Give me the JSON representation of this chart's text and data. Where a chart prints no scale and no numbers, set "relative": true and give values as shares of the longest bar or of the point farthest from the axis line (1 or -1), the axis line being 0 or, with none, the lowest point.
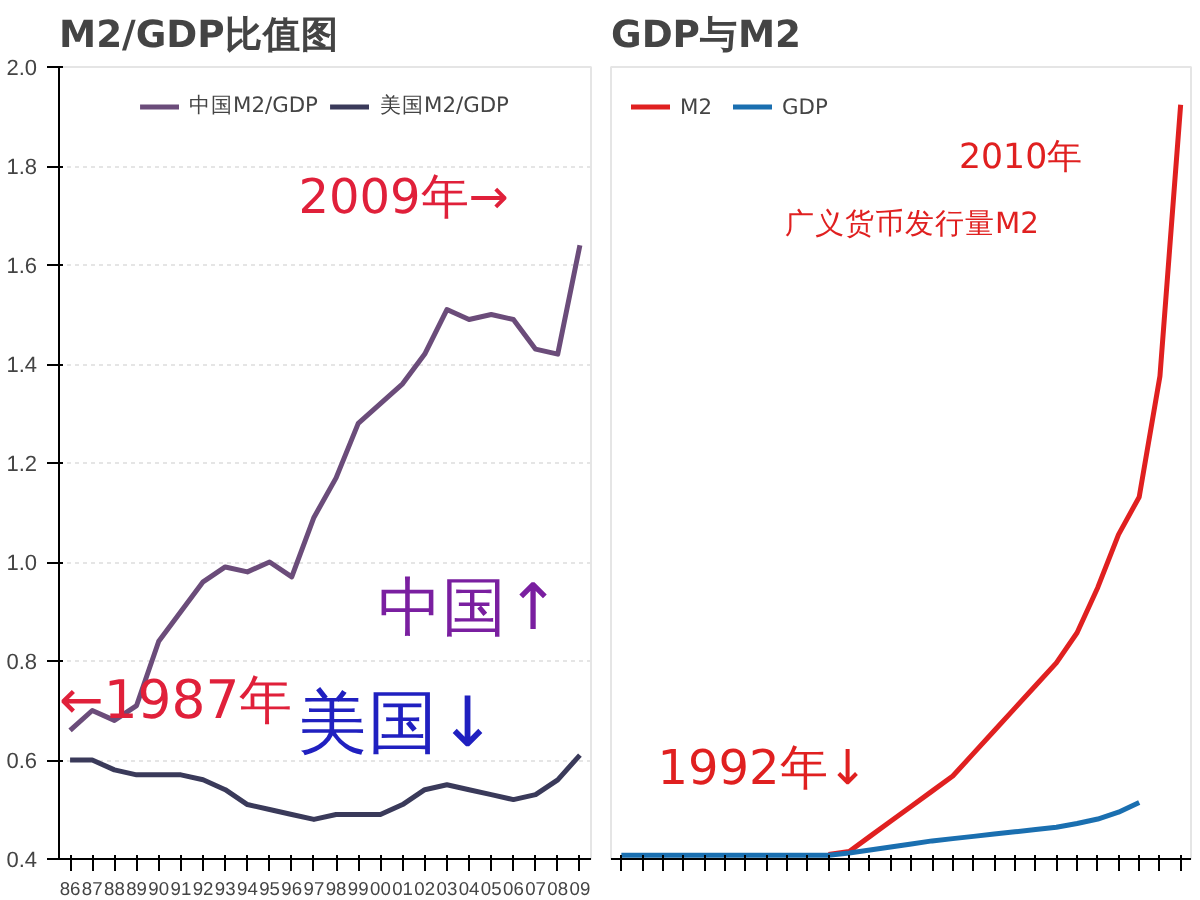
{
  "chart_data": [
    {
      "type": "line",
      "title": "M2/GDP比值图",
      "categories": [
        "86",
        "87",
        "88",
        "89",
        "90",
        "91",
        "92",
        "93",
        "94",
        "95",
        "96",
        "97",
        "98",
        "99",
        "00",
        "01",
        "02",
        "03",
        "04",
        "05",
        "06",
        "07",
        "08",
        "09"
      ],
      "series": [
        {
          "name": "中国M2/GDP",
          "color": "#6b4c7a",
          "values": [
            0.66,
            0.7,
            0.68,
            0.71,
            0.84,
            0.9,
            0.96,
            0.99,
            0.98,
            1.0,
            0.97,
            1.09,
            1.17,
            1.28,
            1.32,
            1.36,
            1.42,
            1.51,
            1.49,
            1.5,
            1.49,
            1.43,
            1.42,
            1.64
          ]
        },
        {
          "name": "美国M2/GDP",
          "color": "#3a3a5a",
          "values": [
            0.6,
            0.6,
            0.58,
            0.57,
            0.57,
            0.57,
            0.56,
            0.54,
            0.51,
            0.5,
            0.49,
            0.48,
            0.49,
            0.49,
            0.49,
            0.51,
            0.54,
            0.55,
            0.54,
            0.53,
            0.52,
            0.53,
            0.56,
            0.61
          ]
        }
      ],
      "ylim": [
        0.4,
        2.0
      ],
      "yticks": [
        0.4,
        0.6,
        0.8,
        {
          "value": 1,
          "label": "1.0"
        },
        1.2,
        1.4,
        1.6,
        1.8,
        {
          "value": 2,
          "label": "2.0"
        }
      ],
      "grid": "y",
      "legend": "top",
      "annotations": [
        "2009年→",
        "←1987年",
        "中国↑",
        "美国↓"
      ]
    },
    {
      "type": "line",
      "title": "GDP与M2",
      "relative": true,
      "categories": [
        null,
        null,
        null,
        null,
        null,
        null,
        null,
        null,
        null,
        null,
        null,
        null,
        null,
        null,
        null,
        null,
        null,
        null,
        null,
        null,
        null,
        null,
        null,
        null,
        null,
        null,
        null,
        null
      ],
      "series": [
        {
          "name": "M2",
          "color": "#e02020",
          "values": [
            null,
            null,
            null,
            null,
            null,
            null,
            null,
            null,
            null,
            null,
            0.006,
            0.01,
            0.03,
            0.05,
            0.07,
            0.09,
            0.11,
            0.14,
            0.17,
            0.2,
            0.23,
            0.26,
            0.3,
            0.36,
            0.43,
            0.48,
            0.64,
            1.0
          ]
        },
        {
          "name": "GDP",
          "color": "#1a6fb0",
          "values": [
            0.005,
            0.005,
            0.005,
            0.005,
            0.005,
            0.005,
            0.005,
            0.005,
            0.005,
            0.005,
            0.005,
            0.008,
            0.012,
            0.016,
            0.02,
            0.024,
            0.027,
            0.03,
            0.033,
            0.036,
            0.039,
            0.042,
            0.047,
            0.053,
            0.062,
            0.075,
            null,
            null
          ]
        }
      ],
      "legend": "top left",
      "annotations": [
        "2010年",
        "广义货币发行量M2",
        "1992年↓"
      ]
    }
  ]
}
